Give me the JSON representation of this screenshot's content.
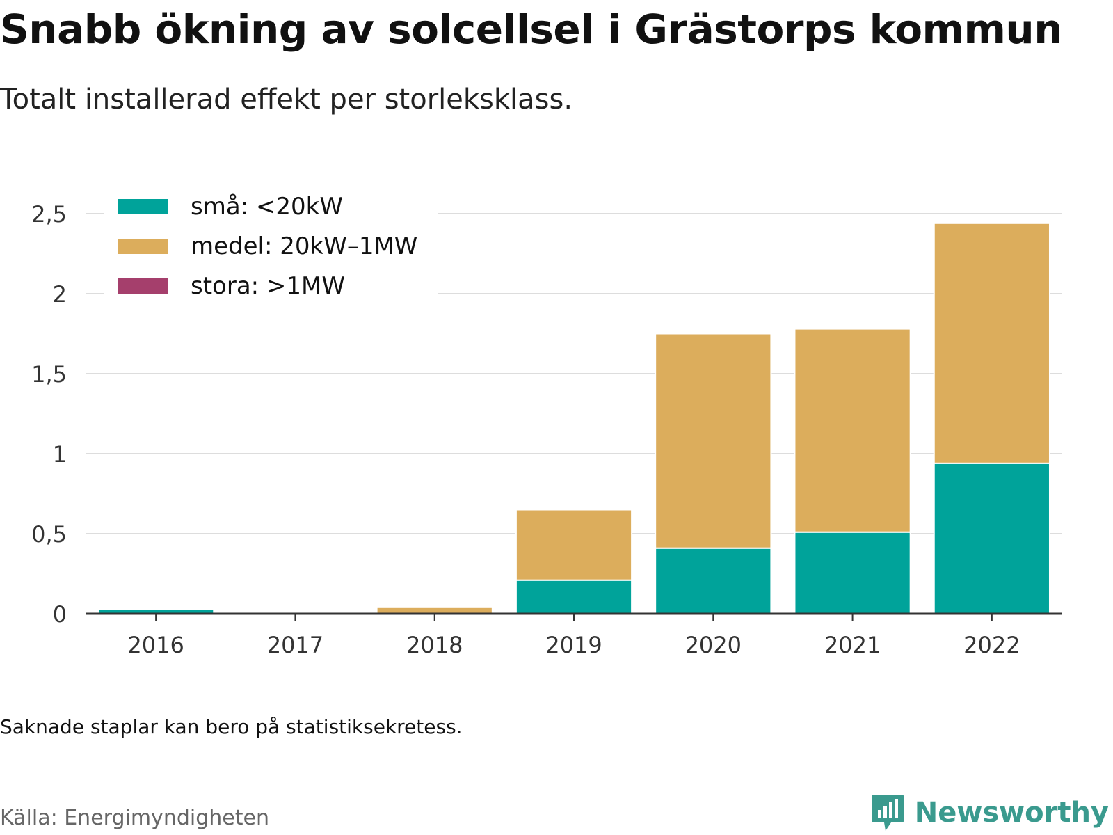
{
  "header": {
    "title": "Snabb ökning av solcellsel i Grästorps kommun",
    "subtitle": "Totalt installerad effekt per storleksklass."
  },
  "footer": {
    "note": "Saknade staplar kan bero på statistiksekretess.",
    "source": "Källa: Energimyndigheten",
    "brand": "Newsworthy"
  },
  "icons": {
    "brand_logo": "newsworthy-logo-icon"
  },
  "colors": {
    "small": "#00a39a",
    "medium": "#dcad5c",
    "large": "#a53f6c",
    "grid": "#dddddd",
    "axis": "#333333",
    "brand": "#3a9a8e"
  },
  "chart_data": {
    "type": "bar",
    "stacked": true,
    "categories": [
      "2016",
      "2017",
      "2018",
      "2019",
      "2020",
      "2021",
      "2022"
    ],
    "series": [
      {
        "name": "små: <20kW",
        "color": "#00a39a",
        "values": [
          0.03,
          0.0,
          0.0,
          0.21,
          0.41,
          0.51,
          0.94
        ]
      },
      {
        "name": "medel: 20kW–1MW",
        "color": "#dcad5c",
        "values": [
          0.0,
          0.01,
          0.04,
          0.44,
          1.34,
          1.27,
          1.5
        ]
      },
      {
        "name": "stora: >1MW",
        "color": "#a53f6c",
        "values": [
          0,
          0,
          0,
          0,
          0,
          0,
          0
        ]
      }
    ],
    "ylim": [
      0,
      2.6
    ],
    "yticks": [
      0,
      0.5,
      1,
      1.5,
      2,
      2.5
    ],
    "ytick_labels": [
      "0",
      "0,5",
      "1",
      "1,5",
      "2",
      "2,5"
    ],
    "grid": true,
    "legend_position": "top-left"
  }
}
